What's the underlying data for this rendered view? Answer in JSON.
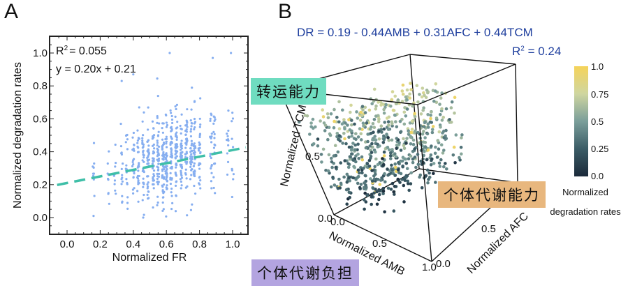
{
  "panels": {
    "a_letter": "A",
    "b_letter": "B"
  },
  "colors": {
    "scatter_a": "#86aef0",
    "fit_line": "#3fbfa8",
    "equation_b": "#1f3f9e",
    "tag_transport": "#6fdcc0",
    "tag_metabolic_capacity": "#e8b77e",
    "tag_metabolic_burden": "#b3a4e0",
    "colormap_low": "#1b2a3a",
    "colormap_mid": "#7a9e9a",
    "colormap_high": "#f5d35a"
  },
  "tags": {
    "transport": "转运能力",
    "metabolic_capacity": "个体代谢能力",
    "metabolic_burden": "个体代谢负担"
  },
  "chart_data": [
    {
      "id": "A",
      "type": "scatter",
      "title": "",
      "xlabel": "Normalized FR",
      "ylabel": "Normalized degradation rates",
      "xlim": [
        -0.08,
        1.08
      ],
      "ylim": [
        -0.1,
        1.1
      ],
      "xticks": [
        "0.0",
        "0.2",
        "0.4",
        "0.6",
        "0.8",
        "1.0"
      ],
      "yticks": [
        "0.0",
        "0.2",
        "0.4",
        "0.6",
        "0.8",
        "1.0"
      ],
      "xtick_values": [
        0.0,
        0.2,
        0.4,
        0.6,
        0.8,
        1.0
      ],
      "ytick_values": [
        0.0,
        0.2,
        0.4,
        0.6,
        0.8,
        1.0
      ],
      "annotations": [
        "R² = 0.055",
        "y = 0.20x + 0.21"
      ],
      "annotation_r2_prefix": "R",
      "annotation_r2_sup": "2",
      "annotation_r2_value": "= 0.055",
      "fit": {
        "slope": 0.2,
        "intercept": 0.21,
        "style": "dashed"
      },
      "x_columns": [
        0.16,
        0.25,
        0.29,
        0.33,
        0.36,
        0.4,
        0.43,
        0.46,
        0.49,
        0.52,
        0.55,
        0.58,
        0.6,
        0.63,
        0.66,
        0.69,
        0.72,
        0.75,
        0.77,
        0.8,
        0.87,
        0.89,
        0.97,
        1.0
      ],
      "notable_points": [
        {
          "x": 0.16,
          "y": 0.01
        },
        {
          "x": 0.46,
          "y": 0.0
        },
        {
          "x": 0.62,
          "y": 1.0
        },
        {
          "x": 0.88,
          "y": 0.97
        },
        {
          "x": 0.99,
          "y": 1.0
        },
        {
          "x": 0.33,
          "y": 0.83
        },
        {
          "x": 0.4,
          "y": 0.87
        }
      ],
      "grid": false
    },
    {
      "id": "B",
      "type": "scatter",
      "subtype": "3d",
      "title": "DR = 0.19 - 0.44AMB + 0.31AFC + 0.44TCM",
      "r2_label": "R² = 0.24",
      "r2_prefix": "R",
      "r2_sup": "2",
      "r2_value": "= 0.24",
      "xlabel": "Normalized AMB",
      "ylabel": "Normalized AFC",
      "zlabel": "Normalized TCM",
      "x_ticks": [
        "0.0",
        "0.5",
        "1.0"
      ],
      "y_ticks": [
        "0.0",
        "0.5"
      ],
      "z_ticks": [
        "0.0",
        "0.5"
      ],
      "xlim": [
        0,
        1
      ],
      "ylim": [
        0,
        1
      ],
      "zlim": [
        0,
        1
      ],
      "model": {
        "intercept": 0.19,
        "AMB": -0.44,
        "AFC": 0.31,
        "TCM": 0.44
      },
      "colorbar": {
        "title_line1": "Normalized",
        "title_line2": "degradation rates",
        "ticks": [
          "1.0",
          "0.75",
          "0.5",
          "0.25",
          "0.0"
        ],
        "tick_values": [
          1.0,
          0.75,
          0.5,
          0.25,
          0.0
        ],
        "range": [
          0,
          1
        ]
      },
      "grid": false
    }
  ]
}
